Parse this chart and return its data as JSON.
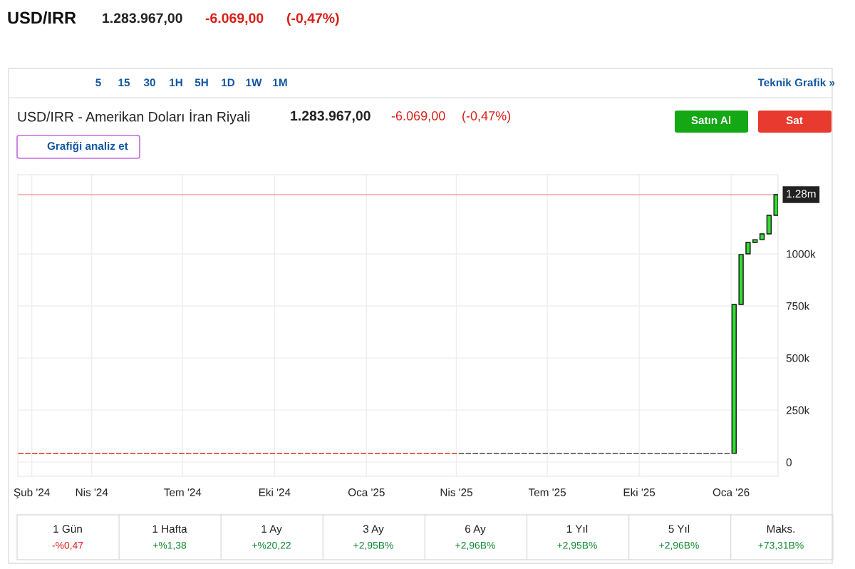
{
  "chart_data": {
    "type": "candlestick",
    "title": "USD/IRR - Amerikan Doları İran Riyali",
    "annotations": [
      "USD/IRR",
      "1.283.967,00",
      "-6.069,00",
      "(-0,47%)",
      "5",
      "15",
      "30",
      "1H",
      "5H",
      "1D",
      "1W",
      "1M",
      "Teknik Grafik »",
      "1.283.967,00",
      "-6.069,00",
      "(-0,47%)",
      "Satın Al",
      "Sat",
      "Grafiği analiz et",
      "1 Gün",
      "-%0,47",
      "1 Hafta",
      "+%1,38",
      "1 Ay",
      "+%20,22",
      "3 Ay",
      "+2,95B%",
      "6 Ay",
      "+2,96B%",
      "1 Yıl",
      "+2,95B%",
      "5 Yıl",
      "+2,96B%",
      "Maks.",
      "+73,31B%"
    ],
    "series": [
      {
        "color": "#e0452b",
        "x": [
          "2024-01-21",
          "2024-01-28",
          "2024-02-04",
          "2024-02-11",
          "2024-02-18",
          "2024-02-25",
          "2024-03-03",
          "2024-03-10",
          "2024-03-17",
          "2024-03-24",
          "2024-03-31",
          "2024-04-07",
          "2024-04-14",
          "2024-04-21",
          "2024-04-28",
          "2024-05-05",
          "2024-05-12",
          "2024-05-19",
          "2024-05-26",
          "2024-06-02",
          "2024-06-09",
          "2024-06-16",
          "2024-06-23",
          "2024-06-30",
          "2024-07-07",
          "2024-07-14",
          "2024-07-21",
          "2024-07-28",
          "2024-08-04",
          "2024-08-11",
          "2024-08-18",
          "2024-08-25",
          "2024-09-01",
          "2024-09-08",
          "2024-09-15",
          "2024-09-22",
          "2024-09-29",
          "2024-10-06",
          "2024-10-13",
          "2024-10-20",
          "2024-10-27",
          "2024-11-03",
          "2024-11-10",
          "2024-11-17",
          "2024-11-24",
          "2024-12-01",
          "2024-12-08",
          "2024-12-15",
          "2024-12-22",
          "2024-12-29",
          "2025-01-05",
          "2025-01-12",
          "2025-01-19",
          "2025-01-26",
          "2025-02-02",
          "2025-02-09",
          "2025-02-16",
          "2025-02-23",
          "2025-03-02",
          "2025-03-09",
          "2025-03-16",
          "2025-03-23",
          "2025-03-30"
        ],
        "ohlc": [
          [
            42000,
            42000,
            42000,
            42000
          ],
          [
            42000,
            42000,
            42000,
            42000
          ],
          [
            42000,
            42000,
            42000,
            42000
          ],
          [
            42000,
            42000,
            42000,
            42000
          ],
          [
            42000,
            42000,
            42000,
            42000
          ],
          [
            42000,
            42000,
            42000,
            42000
          ],
          [
            42000,
            42000,
            42000,
            42000
          ],
          [
            42000,
            42000,
            42000,
            42000
          ],
          [
            42000,
            42000,
            42000,
            42000
          ],
          [
            42000,
            42000,
            42000,
            42000
          ],
          [
            42000,
            42000,
            42000,
            42000
          ],
          [
            42000,
            42000,
            42000,
            42000
          ],
          [
            42000,
            42000,
            42000,
            42000
          ],
          [
            42000,
            42000,
            42000,
            42000
          ],
          [
            42000,
            42000,
            42000,
            42000
          ],
          [
            42000,
            42000,
            42000,
            42000
          ],
          [
            42000,
            42000,
            42000,
            42000
          ],
          [
            42000,
            42000,
            42000,
            42000
          ],
          [
            42000,
            42000,
            42000,
            42000
          ],
          [
            42000,
            42000,
            42000,
            42000
          ],
          [
            42000,
            42000,
            42000,
            42000
          ],
          [
            42000,
            42000,
            42000,
            42000
          ],
          [
            42000,
            42000,
            42000,
            42000
          ],
          [
            42000,
            42000,
            42000,
            42000
          ],
          [
            42000,
            42000,
            42000,
            42000
          ],
          [
            42000,
            42000,
            42000,
            42000
          ],
          [
            42000,
            42000,
            42000,
            42000
          ],
          [
            42000,
            42000,
            42000,
            42000
          ],
          [
            42000,
            42000,
            42000,
            42000
          ],
          [
            42000,
            42000,
            42000,
            42000
          ],
          [
            42000,
            42000,
            42000,
            42000
          ],
          [
            42000,
            42000,
            42000,
            42000
          ],
          [
            42000,
            42000,
            42000,
            42000
          ],
          [
            42000,
            42000,
            42000,
            42000
          ],
          [
            42000,
            42000,
            42000,
            42000
          ],
          [
            42000,
            42000,
            42000,
            42000
          ],
          [
            42000,
            42000,
            42000,
            42000
          ],
          [
            42000,
            42000,
            42000,
            42000
          ],
          [
            42000,
            42000,
            42000,
            42000
          ],
          [
            42000,
            42000,
            42000,
            42000
          ],
          [
            42000,
            42000,
            42000,
            42000
          ],
          [
            42000,
            42000,
            42000,
            42000
          ],
          [
            42000,
            42000,
            42000,
            42000
          ],
          [
            42000,
            42000,
            42000,
            42000
          ],
          [
            42000,
            42000,
            42000,
            42000
          ],
          [
            42000,
            42000,
            42000,
            42000
          ],
          [
            42000,
            42000,
            42000,
            42000
          ],
          [
            42000,
            42000,
            42000,
            42000
          ],
          [
            42000,
            42000,
            42000,
            42000
          ],
          [
            42000,
            42000,
            42000,
            42000
          ],
          [
            42000,
            42000,
            42000,
            42000
          ],
          [
            42000,
            42000,
            42000,
            42000
          ],
          [
            42000,
            42000,
            42000,
            42000
          ],
          [
            42000,
            42000,
            42000,
            42000
          ],
          [
            42000,
            42000,
            42000,
            42000
          ],
          [
            42000,
            42000,
            42000,
            42000
          ],
          [
            42000,
            42000,
            42000,
            42000
          ],
          [
            42000,
            42000,
            42000,
            42000
          ],
          [
            42000,
            42000,
            42000,
            42000
          ],
          [
            42000,
            42000,
            42000,
            42000
          ],
          [
            42000,
            42000,
            42000,
            42000
          ],
          [
            42000,
            42000,
            42000,
            42000
          ],
          [
            42000,
            42000,
            42000,
            42000
          ]
        ]
      },
      {
        "color": "#555555",
        "x": [
          "2025-04-06",
          "2025-04-13",
          "2025-04-20",
          "2025-04-27",
          "2025-05-04",
          "2025-05-11",
          "2025-05-18",
          "2025-05-25",
          "2025-06-01",
          "2025-06-08",
          "2025-06-15",
          "2025-06-22",
          "2025-06-29",
          "2025-07-06",
          "2025-07-13",
          "2025-07-20",
          "2025-07-27",
          "2025-08-03",
          "2025-08-10",
          "2025-08-17",
          "2025-08-24",
          "2025-08-31",
          "2025-09-07",
          "2025-09-14",
          "2025-09-21",
          "2025-09-28",
          "2025-10-05",
          "2025-10-12",
          "2025-10-19",
          "2025-10-26",
          "2025-11-02",
          "2025-11-09",
          "2025-11-16",
          "2025-11-23",
          "2025-11-30",
          "2025-12-07",
          "2025-12-14",
          "2025-12-21",
          "2025-12-28"
        ],
        "ohlc": [
          [
            42000,
            42000,
            42000,
            42000
          ],
          [
            42000,
            42000,
            42000,
            42000
          ],
          [
            42000,
            42000,
            42000,
            42000
          ],
          [
            42000,
            42000,
            42000,
            42000
          ],
          [
            42000,
            42000,
            42000,
            42000
          ],
          [
            42000,
            42000,
            42000,
            42000
          ],
          [
            42000,
            42000,
            42000,
            42000
          ],
          [
            42000,
            42000,
            42000,
            42000
          ],
          [
            42000,
            42000,
            42000,
            42000
          ],
          [
            42000,
            42000,
            42000,
            42000
          ],
          [
            42000,
            42000,
            42000,
            42000
          ],
          [
            42000,
            42000,
            42000,
            42000
          ],
          [
            42000,
            42000,
            42000,
            42000
          ],
          [
            42000,
            42000,
            42000,
            42000
          ],
          [
            42000,
            42000,
            42000,
            42000
          ],
          [
            42000,
            42000,
            42000,
            42000
          ],
          [
            42000,
            42000,
            42000,
            42000
          ],
          [
            42000,
            42000,
            42000,
            42000
          ],
          [
            42000,
            42000,
            42000,
            42000
          ],
          [
            42000,
            42000,
            42000,
            42000
          ],
          [
            42000,
            42000,
            42000,
            42000
          ],
          [
            42000,
            42000,
            42000,
            42000
          ],
          [
            42000,
            42000,
            42000,
            42000
          ],
          [
            42000,
            42000,
            42000,
            42000
          ],
          [
            42000,
            42000,
            42000,
            42000
          ],
          [
            42000,
            42000,
            42000,
            42000
          ],
          [
            42000,
            42000,
            42000,
            42000
          ],
          [
            42000,
            42000,
            42000,
            42000
          ],
          [
            42000,
            42000,
            42000,
            42000
          ],
          [
            42000,
            42000,
            42000,
            42000
          ],
          [
            42000,
            42000,
            42000,
            42000
          ],
          [
            42000,
            42000,
            42000,
            42000
          ],
          [
            42000,
            42000,
            42000,
            42000
          ],
          [
            42000,
            42000,
            42000,
            42000
          ],
          [
            42000,
            42000,
            42000,
            42000
          ],
          [
            42000,
            42000,
            42000,
            42000
          ],
          [
            42000,
            42000,
            42000,
            42000
          ],
          [
            42000,
            42000,
            42000,
            42000
          ],
          [
            42000,
            42000,
            42000,
            42000
          ]
        ]
      },
      {
        "color": "#33dd33",
        "x": [
          "2026-01-04",
          "2026-01-11",
          "2026-01-18",
          "2026-01-25",
          "2026-02-01",
          "2026-02-08",
          "2026-02-15"
        ],
        "ohlc": [
          [
            42000,
            757000,
            42000,
            757000
          ],
          [
            757000,
            997000,
            757000,
            997000
          ],
          [
            1000000,
            1055000,
            1000000,
            1055000
          ],
          [
            1055000,
            1068000,
            1055000,
            1068000
          ],
          [
            1068000,
            1096000,
            1068000,
            1096000
          ],
          [
            1096000,
            1185000,
            1096000,
            1185000
          ],
          [
            1185000,
            1284000,
            1185000,
            1284000
          ]
        ]
      }
    ],
    "xlim": [
      "2024-01-18",
      "2026-02-17"
    ],
    "xticks": [
      {
        "value": "2024-02-01",
        "label": "Şub '24"
      },
      {
        "value": "2024-04-01",
        "label": "Nis '24"
      },
      {
        "value": "2024-07-01",
        "label": "Tem '24"
      },
      {
        "value": "2024-10-01",
        "label": "Eki '24"
      },
      {
        "value": "2025-01-01",
        "label": "Oca '25"
      },
      {
        "value": "2025-04-01",
        "label": "Nis '25"
      },
      {
        "value": "2025-07-01",
        "label": "Tem '25"
      },
      {
        "value": "2025-10-01",
        "label": "Eki '25"
      },
      {
        "value": "2026-01-01",
        "label": "Oca '26"
      }
    ],
    "ylim": [
      -68000,
      1380000
    ],
    "yticks": [
      0,
      {
        "value": 250000,
        "label": "250k"
      },
      {
        "value": 500000,
        "label": "500k"
      },
      {
        "value": 750000,
        "label": "750k"
      },
      {
        "value": 1000000,
        "label": "1000k"
      }
    ],
    "ref_lines": [
      {
        "axis": "y",
        "value": 1284000,
        "label": "1.28m",
        "color": "#f4a0a0"
      }
    ],
    "grid": true
  }
}
